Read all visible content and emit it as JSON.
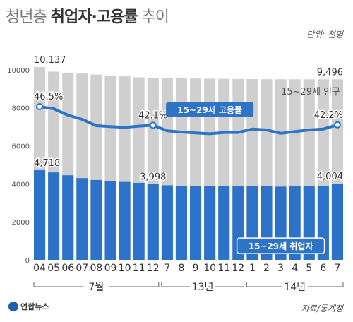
{
  "title": {
    "light": "청년층",
    "bold": "취업자·고용률",
    "end": "추이"
  },
  "unit_label": "단위: 천명",
  "source": "자료/통계청",
  "logo_text": "연합뉴스",
  "colors": {
    "population_bar": "#cfcfcf",
    "employed_bar": "#2b72c8",
    "rate_line": "#2d73c6",
    "callout_fill": "#2d73c6"
  },
  "chart_data": {
    "type": "bar",
    "categories": [
      "04",
      "05",
      "06",
      "07",
      "08",
      "09",
      "10",
      "11",
      "12",
      "7",
      "8",
      "9",
      "10",
      "11",
      "12",
      "1",
      "2",
      "3",
      "4",
      "5",
      "6",
      "7"
    ],
    "groups": [
      {
        "label": "7월",
        "from": 0,
        "to": 8
      },
      {
        "label": "13년",
        "from": 9,
        "to": 14
      },
      {
        "label": "14년",
        "from": 15,
        "to": 21
      }
    ],
    "y_ticks": [
      0,
      2000,
      4000,
      6000,
      8000,
      10000
    ],
    "ylim": [
      0,
      10400
    ],
    "series": [
      {
        "name": "15~29세 인구",
        "kind": "bar",
        "values": [
          10137,
          9900,
          9850,
          9800,
          9750,
          9700,
          9650,
          9600,
          9580,
          9560,
          9550,
          9540,
          9530,
          9520,
          9515,
          9510,
          9505,
          9500,
          9498,
          9497,
          9497,
          9496
        ]
      },
      {
        "name": "15~29세 취업자",
        "kind": "bar",
        "values": [
          4718,
          4600,
          4450,
          4300,
          4200,
          4150,
          4100,
          4050,
          3998,
          3920,
          3900,
          3880,
          3880,
          3870,
          3880,
          3890,
          3880,
          3850,
          3870,
          3890,
          3900,
          4004
        ]
      },
      {
        "name": "15~29세 고용률",
        "kind": "line",
        "values": [
          46.5,
          46.0,
          44.5,
          43.5,
          42.0,
          41.8,
          41.6,
          41.9,
          42.1,
          40.8,
          40.5,
          40.3,
          40.1,
          40.4,
          40.4,
          41.2,
          41.0,
          40.2,
          40.6,
          41.0,
          41.2,
          42.2
        ]
      }
    ],
    "data_labels": [
      {
        "series": 0,
        "index": 0,
        "text": "10,137"
      },
      {
        "series": 0,
        "index": 21,
        "text": "9,496"
      },
      {
        "series": 1,
        "index": 0,
        "text": "4,718"
      },
      {
        "series": 1,
        "index": 8,
        "text": "3,998"
      },
      {
        "series": 1,
        "index": 21,
        "text": "4,004"
      },
      {
        "series": 2,
        "index": 0,
        "text": "46.5%"
      },
      {
        "series": 2,
        "index": 8,
        "text": "42.1%"
      },
      {
        "series": 2,
        "index": 21,
        "text": "42.2%"
      }
    ]
  }
}
